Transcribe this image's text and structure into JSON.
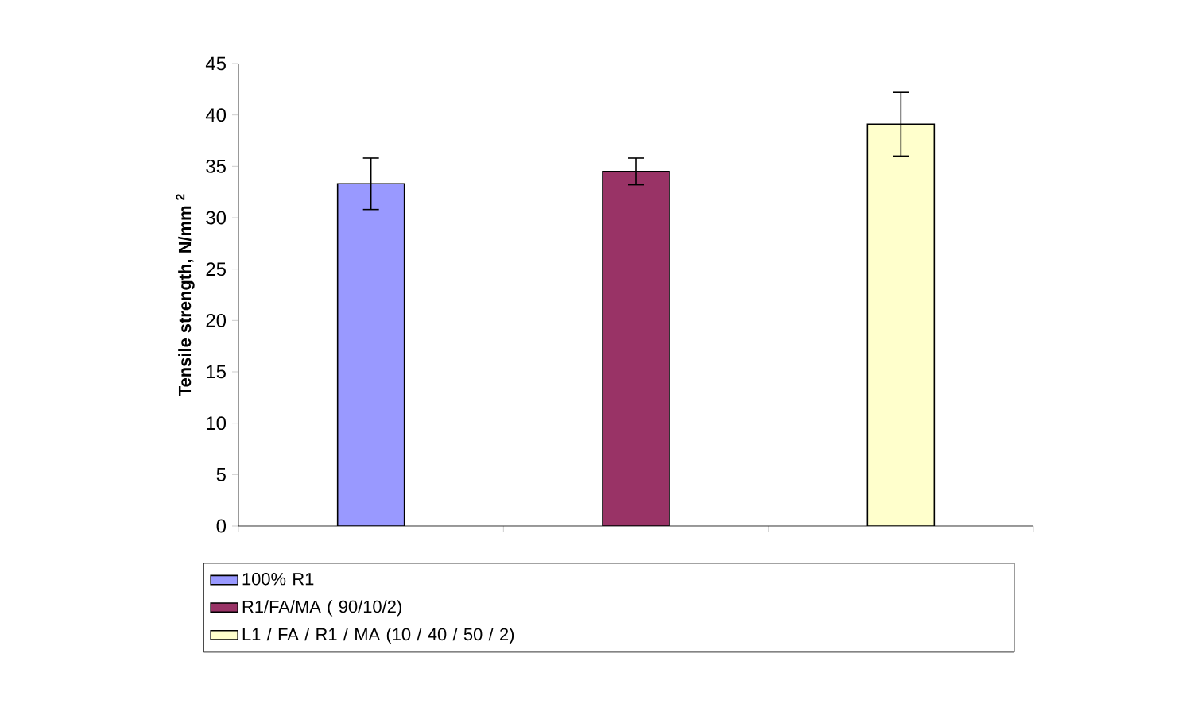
{
  "chart_data": {
    "type": "bar",
    "ylabel": "Tensile strength, N/mm $^{2}$",
    "categories": [
      null,
      null,
      null
    ],
    "series": [
      {
        "name": "100% R1",
        "color": "#9999ff",
        "values": [
          33.3,
          null,
          null
        ],
        "errors": [
          2.5,
          null,
          null
        ]
      },
      {
        "name": "R1/FA/MA ( 90/10/2)",
        "color": "#993366",
        "values": [
          null,
          34.5,
          null
        ],
        "errors": [
          null,
          1.3,
          null
        ]
      },
      {
        "name": "L1 / FA / R1 / MA (10 / 40 / 50 / 2)",
        "color": "#ffffcc",
        "values": [
          null,
          null,
          39.1
        ],
        "errors": [
          null,
          null,
          3.1
        ]
      }
    ],
    "ylim": [
      0,
      45
    ],
    "yticks": [
      0,
      5,
      10,
      15,
      20,
      25,
      30,
      35,
      40,
      45
    ],
    "legend": "bottom"
  }
}
